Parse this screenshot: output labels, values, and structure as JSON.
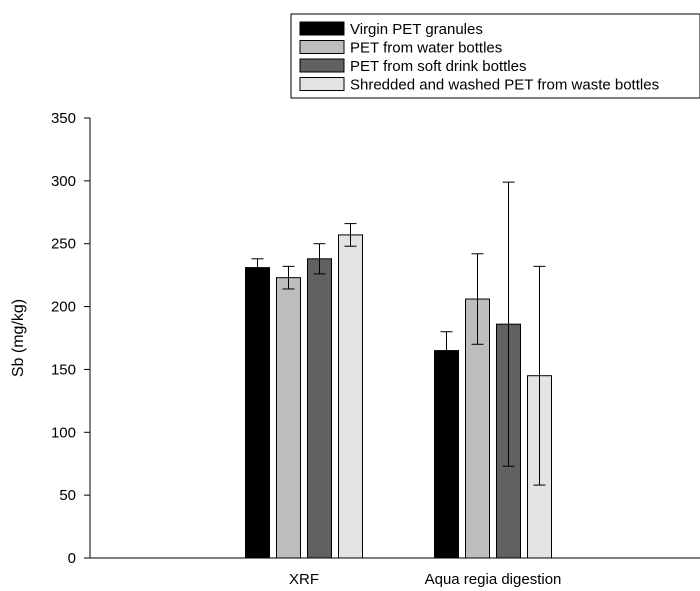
{
  "chart_data": {
    "type": "bar",
    "title": "",
    "xlabel": "",
    "ylabel": "Sb (mg/kg)",
    "ylim": [
      0,
      350
    ],
    "yticks": [
      0,
      50,
      100,
      150,
      200,
      250,
      300,
      350
    ],
    "grid": false,
    "legend_position": "top-right",
    "categories": [
      "XRF",
      "Aqua regia digestion"
    ],
    "series": [
      {
        "name": "Virgin PET granules",
        "color": "#000000",
        "values": [
          231,
          165
        ],
        "errors": [
          7,
          15
        ]
      },
      {
        "name": "PET from water bottles",
        "color": "#bdbdbd",
        "values": [
          223,
          206
        ],
        "errors": [
          9,
          36
        ]
      },
      {
        "name": "PET from soft drink bottles",
        "color": "#616161",
        "values": [
          238,
          186
        ],
        "errors": [
          12,
          113
        ]
      },
      {
        "name": "Shredded and washed PET from waste bottles",
        "color": "#e3e3e3",
        "values": [
          257,
          145
        ],
        "errors": [
          9,
          87
        ]
      }
    ]
  }
}
